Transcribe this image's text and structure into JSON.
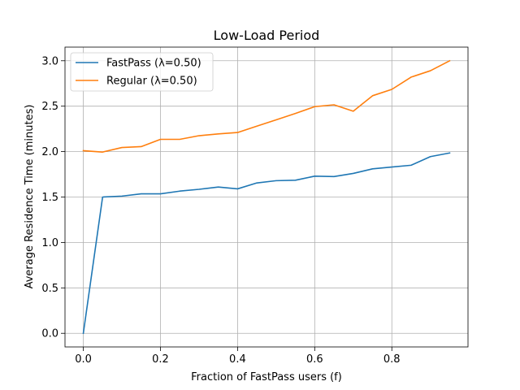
{
  "chart_data": {
    "type": "line",
    "title": "Low-Load Period",
    "xlabel": "Fraction of FastPass users (f)",
    "ylabel": "Average Residence Time (minutes)",
    "xlim": [
      -0.0475,
      0.9975
    ],
    "ylim": [
      -0.15,
      3.15
    ],
    "xticks": [
      0.0,
      0.2,
      0.4,
      0.6,
      0.8
    ],
    "xtick_labels": [
      "0.0",
      "0.2",
      "0.4",
      "0.6",
      "0.8"
    ],
    "yticks": [
      0.0,
      0.5,
      1.0,
      1.5,
      2.0,
      2.5,
      3.0
    ],
    "ytick_labels": [
      "0.0",
      "0.5",
      "1.0",
      "1.5",
      "2.0",
      "2.5",
      "3.0"
    ],
    "grid": true,
    "legend_position": "upper-left",
    "x": [
      0.0,
      0.05,
      0.1,
      0.15,
      0.2,
      0.25,
      0.3,
      0.35,
      0.4,
      0.45,
      0.5,
      0.55,
      0.6,
      0.65,
      0.7,
      0.75,
      0.8,
      0.85,
      0.9,
      0.95
    ],
    "series": [
      {
        "name": "FastPass (λ=0.50)",
        "color": "#1f77b4",
        "values": [
          0.0,
          1.5,
          1.51,
          1.535,
          1.535,
          1.565,
          1.585,
          1.61,
          1.59,
          1.655,
          1.68,
          1.685,
          1.73,
          1.725,
          1.76,
          1.81,
          1.83,
          1.85,
          1.945,
          1.985
        ]
      },
      {
        "name": "Regular (λ=0.50)",
        "color": "#ff7f0e",
        "values": [
          2.01,
          1.995,
          2.045,
          2.055,
          2.135,
          2.135,
          2.175,
          2.195,
          2.21,
          2.28,
          2.35,
          2.42,
          2.495,
          2.515,
          2.445,
          2.615,
          2.685,
          2.82,
          2.89,
          3.0
        ]
      }
    ]
  }
}
